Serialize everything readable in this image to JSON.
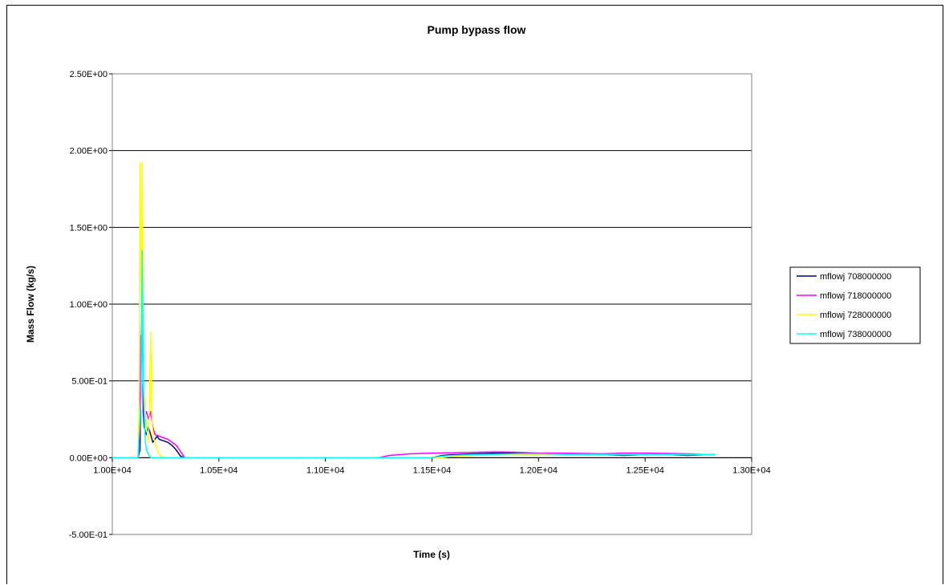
{
  "chart_data": {
    "type": "line",
    "title": "Pump bypass flow",
    "xlabel": "Time (s)",
    "ylabel": "Mass Flow (kg/s)",
    "xlim": [
      10000,
      13000
    ],
    "ylim": [
      -0.5,
      2.5
    ],
    "x_ticks": [
      "1.00E+04",
      "1.05E+04",
      "1.10E+04",
      "1.15E+04",
      "1.20E+04",
      "1.25E+04",
      "1.30E+04"
    ],
    "y_ticks": [
      "2.50E+00",
      "2.00E+00",
      "1.50E+00",
      "1.00E+00",
      "5.00E-01",
      "0.00E+00",
      "-5.00E-01"
    ],
    "grid": "horizontal",
    "legend_position": "right",
    "series": [
      {
        "name": "mflowj 708000000",
        "color": "#000080",
        "points": [
          [
            10000,
            0
          ],
          [
            10120,
            0
          ],
          [
            10130,
            0.05
          ],
          [
            10135,
            0.6
          ],
          [
            10140,
            1.3
          ],
          [
            10145,
            0.3
          ],
          [
            10150,
            0.2
          ],
          [
            10160,
            0.15
          ],
          [
            10170,
            0.2
          ],
          [
            10180,
            0.15
          ],
          [
            10190,
            0.1
          ],
          [
            10200,
            0.12
          ],
          [
            10210,
            0.14
          ],
          [
            10220,
            0.12
          ],
          [
            10240,
            0.11
          ],
          [
            10260,
            0.1
          ],
          [
            10280,
            0.08
          ],
          [
            10300,
            0.05
          ],
          [
            10320,
            0.01
          ],
          [
            10340,
            0
          ],
          [
            11500,
            0
          ],
          [
            11550,
            0.015
          ],
          [
            11600,
            0.02
          ],
          [
            11700,
            0.025
          ],
          [
            11800,
            0.03
          ],
          [
            11900,
            0.03
          ],
          [
            12000,
            0.025
          ],
          [
            12100,
            0.02
          ],
          [
            12200,
            0.02
          ],
          [
            12300,
            0.02
          ],
          [
            12400,
            0.015
          ],
          [
            12500,
            0.02
          ],
          [
            12600,
            0.02
          ],
          [
            12700,
            0.015
          ],
          [
            12800,
            0.02
          ],
          [
            12830,
            0.02
          ]
        ]
      },
      {
        "name": "mflowj 718000000",
        "color": "#ff00ff",
        "points": [
          [
            10000,
            0
          ],
          [
            10120,
            0
          ],
          [
            10130,
            0.2
          ],
          [
            10140,
            1.7
          ],
          [
            10145,
            0.5
          ],
          [
            10150,
            0.25
          ],
          [
            10160,
            0.3
          ],
          [
            10170,
            0.25
          ],
          [
            10180,
            0.3
          ],
          [
            10190,
            0.2
          ],
          [
            10200,
            0.15
          ],
          [
            10220,
            0.14
          ],
          [
            10240,
            0.13
          ],
          [
            10260,
            0.12
          ],
          [
            10280,
            0.1
          ],
          [
            10300,
            0.08
          ],
          [
            10320,
            0.04
          ],
          [
            10340,
            0
          ],
          [
            11250,
            0
          ],
          [
            11300,
            0.015
          ],
          [
            11400,
            0.025
          ],
          [
            11500,
            0.03
          ],
          [
            11600,
            0.032
          ],
          [
            11700,
            0.035
          ],
          [
            11800,
            0.038
          ],
          [
            11900,
            0.035
          ],
          [
            12000,
            0.03
          ],
          [
            12100,
            0.03
          ],
          [
            12200,
            0.028
          ],
          [
            12300,
            0.025
          ],
          [
            12400,
            0.03
          ],
          [
            12500,
            0.03
          ],
          [
            12600,
            0.028
          ],
          [
            12700,
            0.025
          ],
          [
            12800,
            0.02
          ],
          [
            12830,
            0.02
          ]
        ]
      },
      {
        "name": "mflowj 728000000",
        "color": "#ffff00",
        "points": [
          [
            10000,
            0
          ],
          [
            10120,
            0
          ],
          [
            10125,
            0.3
          ],
          [
            10130,
            1.92
          ],
          [
            10135,
            0.8
          ],
          [
            10140,
            1.92
          ],
          [
            10145,
            0.5
          ],
          [
            10150,
            0.4
          ],
          [
            10160,
            0.2
          ],
          [
            10170,
            0.1
          ],
          [
            10180,
            0.82
          ],
          [
            10185,
            0.3
          ],
          [
            10190,
            0.15
          ],
          [
            10200,
            0.1
          ],
          [
            10210,
            0.05
          ],
          [
            10220,
            0.02
          ],
          [
            10240,
            0
          ],
          [
            11550,
            0
          ],
          [
            11600,
            0.01
          ],
          [
            11700,
            0.015
          ],
          [
            11800,
            0.02
          ],
          [
            11900,
            0.02
          ],
          [
            12000,
            0.02
          ],
          [
            12200,
            0.02
          ],
          [
            12400,
            0.02
          ],
          [
            12600,
            0.02
          ],
          [
            12830,
            0.02
          ]
        ]
      },
      {
        "name": "mflowj 738000000",
        "color": "#00ffff",
        "points": [
          [
            10000,
            0
          ],
          [
            10120,
            0
          ],
          [
            10135,
            0.4
          ],
          [
            10140,
            1.35
          ],
          [
            10145,
            0.5
          ],
          [
            10150,
            0.3
          ],
          [
            10155,
            0.1
          ],
          [
            10160,
            0.05
          ],
          [
            10170,
            0.02
          ],
          [
            10180,
            0
          ],
          [
            11500,
            0
          ],
          [
            11550,
            0.01
          ],
          [
            11600,
            0.015
          ],
          [
            11700,
            0.02
          ],
          [
            11800,
            0.022
          ],
          [
            11900,
            0.025
          ],
          [
            12000,
            0.025
          ],
          [
            12100,
            0.022
          ],
          [
            12200,
            0.02
          ],
          [
            12300,
            0.02
          ],
          [
            12400,
            0.02
          ],
          [
            12500,
            0.02
          ],
          [
            12600,
            0.02
          ],
          [
            12700,
            0.02
          ],
          [
            12830,
            0.02
          ]
        ]
      }
    ]
  }
}
